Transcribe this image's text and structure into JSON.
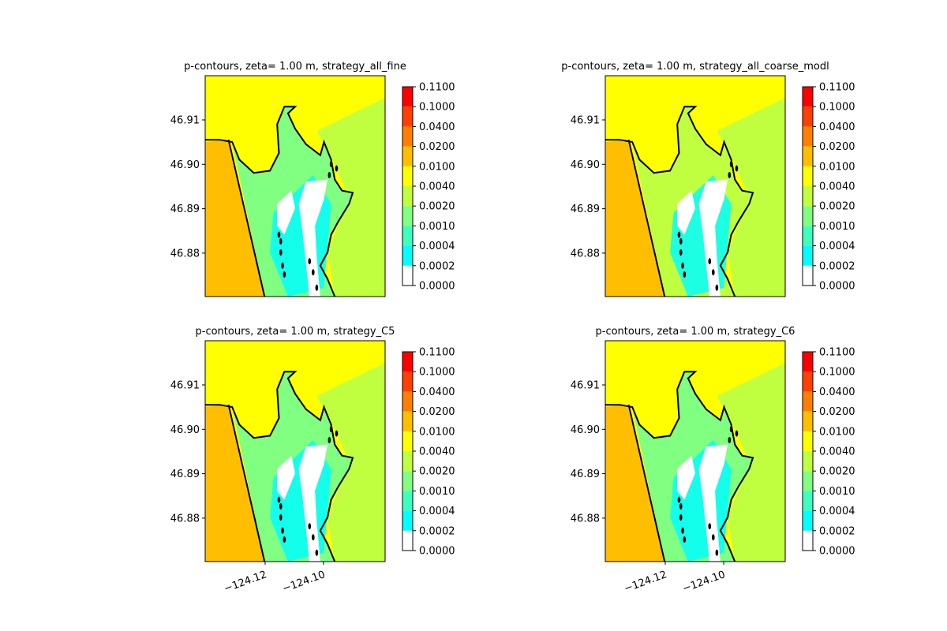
{
  "colorbar": {
    "levels": [
      "0.0000",
      "0.0002",
      "0.0004",
      "0.0010",
      "0.0020",
      "0.0040",
      "0.0100",
      "0.0200",
      "0.0400",
      "0.1000",
      "0.1100"
    ],
    "colors": [
      "#ffffff",
      "#00ffff",
      "#3fffbf",
      "#80ff80",
      "#c0ff40",
      "#ffff00",
      "#ffbf00",
      "#ff8000",
      "#ff4000",
      "#ff0000"
    ]
  },
  "chart_data": [
    {
      "type": "heatmap",
      "title": "p-contours, zeta= 1.00 m, strategy_all_fine",
      "xlabel": "",
      "ylabel": "",
      "y_ticks": [
        "46.91",
        "46.90",
        "46.89",
        "46.88"
      ],
      "x_ticks": [],
      "offshore_class": "0.0100",
      "bay_class": "0.0010",
      "channel_class": "0.0000",
      "north_class": "0.0040",
      "east_class": "0.0020"
    },
    {
      "type": "heatmap",
      "title": "p-contours, zeta= 1.00 m, strategy_all_coarse_modl",
      "xlabel": "",
      "ylabel": "",
      "y_ticks": [
        "46.91",
        "46.90",
        "46.89",
        "46.88"
      ],
      "x_ticks": [],
      "offshore_class": "0.0100",
      "bay_class": "0.0020",
      "channel_class": "0.0000",
      "north_class": "0.0040",
      "east_class": "0.0020"
    },
    {
      "type": "heatmap",
      "title": "p-contours, zeta= 1.00 m, strategy_C5",
      "xlabel": "",
      "ylabel": "",
      "y_ticks": [
        "46.91",
        "46.90",
        "46.89",
        "46.88"
      ],
      "x_ticks": [
        "−124.12",
        "−124.10"
      ],
      "offshore_class": "0.0100",
      "bay_class": "0.0010",
      "channel_class": "0.0000",
      "north_class": "0.0040",
      "east_class": "0.0020"
    },
    {
      "type": "heatmap",
      "title": "p-contours, zeta= 1.00 m, strategy_C6",
      "xlabel": "",
      "ylabel": "",
      "y_ticks": [
        "46.91",
        "46.90",
        "46.89",
        "46.88"
      ],
      "x_ticks": [
        "−124.12",
        "−124.10"
      ],
      "offshore_class": "0.0100",
      "bay_class": "0.0010",
      "channel_class": "0.0000",
      "north_class": "0.0040",
      "east_class": "0.0020"
    }
  ]
}
